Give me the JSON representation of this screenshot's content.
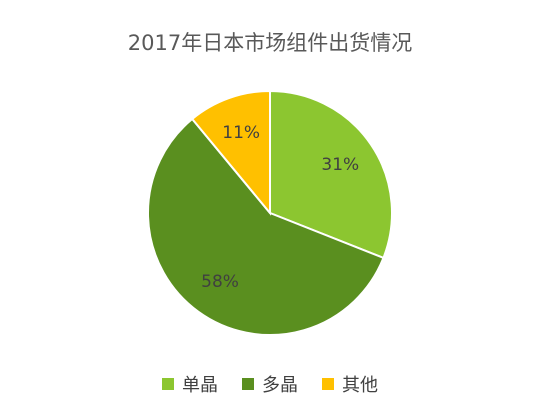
{
  "chart_data": {
    "type": "pie",
    "title": "2017年日本市场组件出货情况",
    "slices": [
      {
        "label": "单晶",
        "value": 31,
        "display": "31%",
        "color": "#8cc630"
      },
      {
        "label": "多晶",
        "value": 58,
        "display": "58%",
        "color": "#5a8f1f"
      },
      {
        "label": "其他",
        "value": 11,
        "display": "11%",
        "color": "#ffc000"
      }
    ],
    "legend_position": "bottom"
  }
}
